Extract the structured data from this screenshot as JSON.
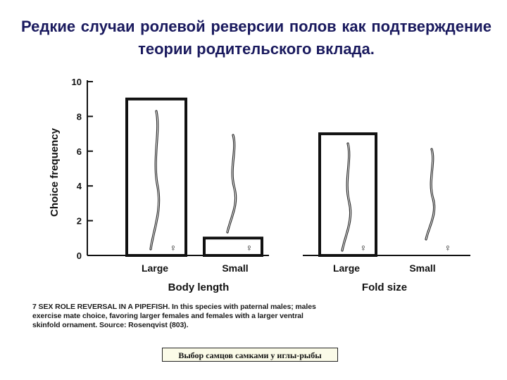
{
  "slide": {
    "title": "Редкие случаи ролевой реверсии полов как подтверждение теории родительского вклада.",
    "caption": "7 SEX ROLE REVERSAL IN A PIPEFISH. In this species with paternal males; males exercise mate choice, favoring larger females and females with a larger ventral skinfold ornament. Source: Rosenqvist (803).",
    "badge": "Выбор самцов самками у иглы-рыбы"
  },
  "chart_data": [
    {
      "type": "bar",
      "ylabel": "Choice frequency",
      "xlabel": "Body length",
      "categories": [
        "Large",
        "Small"
      ],
      "values": [
        9,
        1
      ],
      "ylim": [
        0,
        10
      ],
      "yticks": [
        "0",
        "2",
        "4",
        "6",
        "8",
        "10"
      ],
      "marker": "♀"
    },
    {
      "type": "bar",
      "ylabel": "",
      "xlabel": "Fold size",
      "categories": [
        "Large",
        "Small"
      ],
      "values": [
        7,
        0
      ],
      "ylim": [
        0,
        10
      ],
      "marker": "♀"
    }
  ]
}
